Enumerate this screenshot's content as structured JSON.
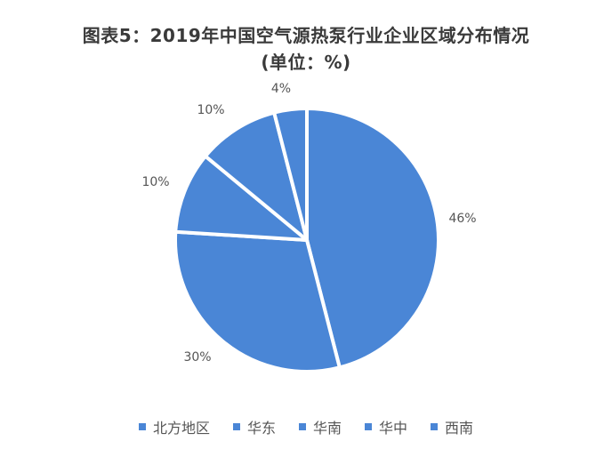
{
  "chart_data": {
    "type": "pie",
    "title": "图表5：2019年中国空气源热泵行业企业区域分布情况",
    "subtitle": "(单位：%)",
    "categories": [
      "北方地区",
      "华东",
      "华南",
      "华中",
      "西南"
    ],
    "values": [
      46,
      30,
      10,
      10,
      4
    ],
    "value_labels": [
      "46%",
      "30%",
      "10%",
      "10%",
      "4%"
    ],
    "colors": [
      "#4a86d6",
      "#4a86d6",
      "#4a86d6",
      "#4a86d6",
      "#4a86d6"
    ],
    "legend_position": "bottom"
  }
}
